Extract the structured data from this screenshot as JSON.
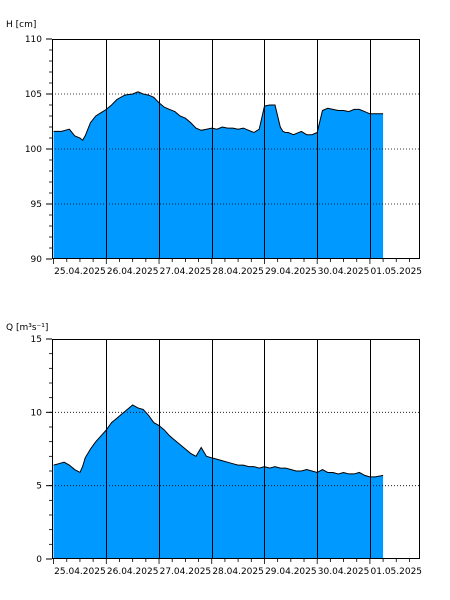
{
  "chart_data": [
    {
      "type": "area",
      "ylabel": "H [cm]",
      "ylim": [
        90,
        110
      ],
      "yticks": [
        90,
        95,
        100,
        105,
        110
      ],
      "x_dates": [
        "25.04.2025",
        "26.04.2025",
        "27.04.2025",
        "28.04.2025",
        "29.04.2025",
        "30.04.2025",
        "01.05.2025"
      ],
      "xlim": [
        -0.03,
        6.95
      ],
      "fill_color": "#0099ff",
      "grid": "dotted horizontal, solid vertical at day boundaries",
      "series": [
        {
          "x": [
            0.0,
            0.15,
            0.3,
            0.4,
            0.5,
            0.55,
            0.6,
            0.7,
            0.8,
            0.9,
            1.0,
            1.1,
            1.2,
            1.35,
            1.5,
            1.6,
            1.7,
            1.8,
            1.9,
            2.0,
            2.1,
            2.2,
            2.3,
            2.4,
            2.5,
            2.6,
            2.7,
            2.8,
            2.9,
            3.0,
            3.1,
            3.2,
            3.3,
            3.4,
            3.5,
            3.6,
            3.7,
            3.8,
            3.9,
            4.0,
            4.1,
            4.2,
            4.3,
            4.35,
            4.4,
            4.45,
            4.5,
            4.55,
            4.6,
            4.7,
            4.8,
            4.9,
            5.0,
            5.1,
            5.2,
            5.3,
            5.4,
            5.5,
            5.6,
            5.7,
            5.8,
            5.9,
            6.0,
            6.1,
            6.25
          ],
          "values": [
            101.6,
            101.6,
            101.8,
            101.2,
            101.0,
            100.8,
            101.2,
            102.4,
            103.0,
            103.3,
            103.6,
            104.0,
            104.5,
            104.9,
            105.0,
            105.2,
            105.0,
            104.9,
            104.7,
            104.2,
            103.8,
            103.6,
            103.4,
            103.0,
            102.8,
            102.4,
            101.9,
            101.7,
            101.8,
            101.9,
            101.8,
            102.0,
            101.9,
            101.9,
            101.8,
            101.9,
            101.7,
            101.5,
            101.8,
            103.9,
            104.0,
            104.0,
            102.0,
            101.6,
            101.5,
            101.5,
            101.4,
            101.3,
            101.4,
            101.6,
            101.3,
            101.3,
            101.5,
            103.5,
            103.7,
            103.6,
            103.5,
            103.5,
            103.4,
            103.6,
            103.6,
            103.4,
            103.2,
            103.2,
            103.2
          ]
        }
      ]
    },
    {
      "type": "area",
      "ylabel": "Q [m³s⁻¹]",
      "ylim": [
        0,
        15
      ],
      "yticks": [
        0,
        5,
        10,
        15
      ],
      "x_dates": [
        "25.04.2025",
        "26.04.2025",
        "27.04.2025",
        "28.04.2025",
        "29.04.2025",
        "30.04.2025",
        "01.05.2025"
      ],
      "xlim": [
        -0.03,
        6.95
      ],
      "fill_color": "#0099ff",
      "grid": "dotted horizontal, solid vertical at day boundaries",
      "series": [
        {
          "x": [
            0.0,
            0.1,
            0.2,
            0.3,
            0.4,
            0.5,
            0.55,
            0.6,
            0.7,
            0.8,
            0.9,
            1.0,
            1.1,
            1.2,
            1.3,
            1.4,
            1.5,
            1.6,
            1.7,
            1.8,
            1.9,
            2.0,
            2.1,
            2.2,
            2.3,
            2.4,
            2.5,
            2.6,
            2.7,
            2.8,
            2.9,
            3.0,
            3.1,
            3.2,
            3.3,
            3.4,
            3.5,
            3.6,
            3.7,
            3.8,
            3.9,
            4.0,
            4.1,
            4.2,
            4.3,
            4.4,
            4.5,
            4.6,
            4.7,
            4.8,
            4.9,
            5.0,
            5.1,
            5.2,
            5.3,
            5.4,
            5.5,
            5.6,
            5.7,
            5.8,
            5.9,
            6.0,
            6.1,
            6.25
          ],
          "values": [
            6.4,
            6.5,
            6.6,
            6.4,
            6.1,
            5.9,
            6.3,
            6.9,
            7.5,
            8.0,
            8.4,
            8.8,
            9.3,
            9.6,
            9.9,
            10.2,
            10.5,
            10.3,
            10.2,
            9.8,
            9.3,
            9.1,
            8.8,
            8.4,
            8.1,
            7.8,
            7.5,
            7.2,
            7.0,
            7.6,
            7.0,
            6.9,
            6.8,
            6.7,
            6.6,
            6.5,
            6.4,
            6.4,
            6.3,
            6.3,
            6.2,
            6.3,
            6.2,
            6.3,
            6.2,
            6.2,
            6.1,
            6.0,
            6.0,
            6.1,
            6.0,
            5.9,
            6.1,
            5.9,
            5.9,
            5.8,
            5.9,
            5.8,
            5.8,
            5.9,
            5.7,
            5.6,
            5.6,
            5.7
          ]
        }
      ]
    }
  ]
}
